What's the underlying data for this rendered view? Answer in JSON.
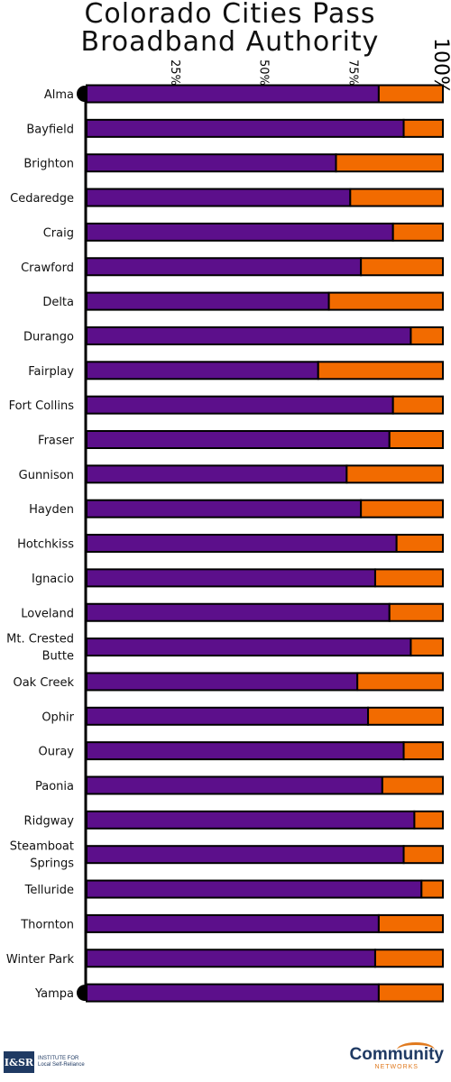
{
  "title_line1": "Colorado Cities Pass",
  "title_line2": "Broadband Authority",
  "colors": {
    "yes": "#5c0f8b",
    "no": "#f26b00",
    "axis": "#000000"
  },
  "footer": {
    "left_logo": "I&SR",
    "left_text": "INSTITUTE FOR Local Self-Reliance",
    "right_logo": "Community",
    "right_sub": "NETWORKS"
  },
  "chart_data": {
    "type": "bar",
    "stacked": true,
    "orientation": "horizontal",
    "title": "Colorado Cities Pass Broadband Authority",
    "x_ticks": [
      "25%",
      "50%",
      "75%",
      "100%"
    ],
    "xlim": [
      0,
      100
    ],
    "categories": [
      "Alma",
      "Bayfield",
      "Brighton",
      "Cedaredge",
      "Craig",
      "Crawford",
      "Delta",
      "Durango",
      "Fairplay",
      "Fort Collins",
      "Fraser",
      "Gunnison",
      "Hayden",
      "Hotchkiss",
      "Ignacio",
      "Loveland",
      "Mt. Crested Butte",
      "Oak Creek",
      "Ophir",
      "Ouray",
      "Paonia",
      "Ridgway",
      "Steamboat Springs",
      "Telluride",
      "Thornton",
      "Winter Park",
      "Yampa"
    ],
    "series": [
      {
        "values": [
          82,
          89,
          70,
          74,
          86,
          77,
          68,
          91,
          65,
          86,
          85,
          73,
          77,
          87,
          81,
          85,
          91,
          76,
          79,
          89,
          83,
          92,
          89,
          94,
          82,
          81,
          82
        ]
      },
      {
        "values": [
          18,
          11,
          30,
          26,
          14,
          23,
          32,
          9,
          35,
          14,
          15,
          27,
          23,
          13,
          19,
          15,
          9,
          24,
          21,
          11,
          17,
          8,
          11,
          6,
          18,
          19,
          18
        ]
      }
    ]
  }
}
